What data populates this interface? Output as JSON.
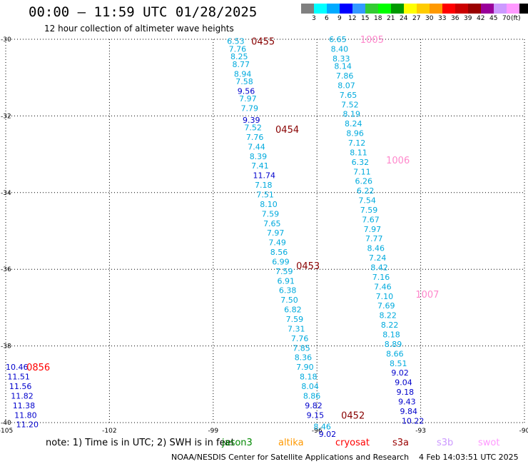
{
  "header": {
    "title": "00:00 – 11:59 UTC 01/28/2025",
    "subtitle": "12 hour collection of altimeter wave heights"
  },
  "colorbar": {
    "colors": [
      "#808080",
      "#00ffff",
      "#00aaff",
      "#0000ff",
      "#3399ff",
      "#33cc33",
      "#00ff00",
      "#009900",
      "#ffff00",
      "#ffcc00",
      "#ff9900",
      "#ff0000",
      "#cc0000",
      "#990000",
      "#990099",
      "#cc99ff",
      "#ff99ff",
      "#000000"
    ],
    "labels": [
      "3",
      "6",
      "9",
      "12",
      "15",
      "18",
      "21",
      "24",
      "27",
      "30",
      "33",
      "36",
      "39",
      "42",
      "45",
      "70",
      "(ft)"
    ]
  },
  "map": {
    "lon_range": [
      -105,
      -90
    ],
    "lat_range": [
      -40,
      -30
    ],
    "lon_ticks": [
      -105,
      -102,
      -99,
      -96,
      -93,
      -90
    ],
    "lat_ticks": [
      -30,
      -32,
      -34,
      -36,
      -38,
      -40
    ],
    "lon_tick_labels": [
      "-105",
      "-102",
      "-99",
      "-96",
      "-93",
      "-90"
    ],
    "lat_tick_labels": [
      "-30",
      "-32",
      "-34",
      "-36",
      "-38",
      "-40"
    ],
    "grid": true
  },
  "tracks": [
    {
      "time_label": "0455",
      "time_label_color": "#880000",
      "label_lon": -97.9,
      "label_lat": -30.05,
      "points": [
        {
          "lon": -98.6,
          "lat": -30.05,
          "v": "6.53"
        },
        {
          "lon": -98.55,
          "lat": -30.25,
          "v": "7.76"
        },
        {
          "lon": -98.5,
          "lat": -30.45,
          "v": "8.25"
        },
        {
          "lon": -98.45,
          "lat": -30.65,
          "v": "8.77"
        },
        {
          "lon": -98.4,
          "lat": -30.9,
          "v": "8.94"
        },
        {
          "lon": -98.35,
          "lat": -31.1,
          "v": "7.58"
        },
        {
          "lon": -98.3,
          "lat": -31.35,
          "v": "9.56"
        },
        {
          "lon": -98.25,
          "lat": -31.55,
          "v": "7.97"
        },
        {
          "lon": -98.2,
          "lat": -31.8,
          "v": "7.79"
        },
        {
          "lon": -98.15,
          "lat": -32.1,
          "v": "9.39"
        }
      ]
    },
    {
      "time_label": "0454",
      "time_label_color": "#880000",
      "label_lon": -97.2,
      "label_lat": -32.35,
      "points": [
        {
          "lon": -98.1,
          "lat": -32.3,
          "v": "7.52"
        },
        {
          "lon": -98.05,
          "lat": -32.55,
          "v": "7.76"
        },
        {
          "lon": -98.0,
          "lat": -32.8,
          "v": "7.44"
        },
        {
          "lon": -97.95,
          "lat": -33.05,
          "v": "8.39"
        },
        {
          "lon": -97.9,
          "lat": -33.3,
          "v": "7.41"
        },
        {
          "lon": -97.85,
          "lat": -33.55,
          "v": "11.74"
        },
        {
          "lon": -97.8,
          "lat": -33.8,
          "v": "7.18"
        },
        {
          "lon": -97.75,
          "lat": -34.05,
          "v": "7.51"
        },
        {
          "lon": -97.65,
          "lat": -34.3,
          "v": "8.10"
        },
        {
          "lon": -97.6,
          "lat": -34.55,
          "v": "7.59"
        },
        {
          "lon": -97.55,
          "lat": -34.8,
          "v": "7.65"
        },
        {
          "lon": -97.45,
          "lat": -35.05,
          "v": "7.97"
        },
        {
          "lon": -97.4,
          "lat": -35.3,
          "v": "7.49"
        },
        {
          "lon": -97.35,
          "lat": -35.55,
          "v": "8.56"
        },
        {
          "lon": -97.3,
          "lat": -35.8,
          "v": "6.99"
        },
        {
          "lon": -97.2,
          "lat": -36.05,
          "v": "7.59"
        }
      ]
    },
    {
      "time_label": "0453",
      "time_label_color": "#880000",
      "label_lon": -96.6,
      "label_lat": -35.9,
      "points": [
        {
          "lon": -97.15,
          "lat": -36.3,
          "v": "6.91"
        },
        {
          "lon": -97.1,
          "lat": -36.55,
          "v": "6.38"
        },
        {
          "lon": -97.05,
          "lat": -36.8,
          "v": "7.50"
        },
        {
          "lon": -96.95,
          "lat": -37.05,
          "v": "6.82"
        },
        {
          "lon": -96.9,
          "lat": -37.3,
          "v": "7.59"
        },
        {
          "lon": -96.85,
          "lat": -37.55,
          "v": "7.31"
        },
        {
          "lon": -96.75,
          "lat": -37.8,
          "v": "7.76"
        },
        {
          "lon": -96.7,
          "lat": -38.05,
          "v": "7.85"
        },
        {
          "lon": -96.65,
          "lat": -38.3,
          "v": "8.36"
        },
        {
          "lon": -96.6,
          "lat": -38.55,
          "v": "7.90"
        },
        {
          "lon": -96.5,
          "lat": -38.8,
          "v": "8.18"
        },
        {
          "lon": -96.45,
          "lat": -39.05,
          "v": "8.04"
        },
        {
          "lon": -96.4,
          "lat": -39.3,
          "v": "8.86"
        },
        {
          "lon": -96.35,
          "lat": -39.55,
          "v": "9.82"
        },
        {
          "lon": -96.3,
          "lat": -39.8,
          "v": "9.15"
        }
      ]
    },
    {
      "time_label": "0452",
      "time_label_color": "#880000",
      "label_lon": -95.3,
      "label_lat": -39.8,
      "points": [
        {
          "lon": -96.1,
          "lat": -40.1,
          "v": "8.46"
        },
        {
          "lon": -95.95,
          "lat": -40.3,
          "v": "9.02"
        }
      ]
    },
    {
      "time_label": "1005",
      "time_label_color": "#ff88cc",
      "label_lon": -94.75,
      "label_lat": -30.0,
      "points": [
        {
          "lon": -95.65,
          "lat": -30.0,
          "v": "6.65"
        },
        {
          "lon": -95.6,
          "lat": -30.25,
          "v": "8.40"
        },
        {
          "lon": -95.55,
          "lat": -30.5,
          "v": "8.33"
        },
        {
          "lon": -95.5,
          "lat": -30.7,
          "v": "8.14"
        },
        {
          "lon": -95.45,
          "lat": -30.95,
          "v": "7.86"
        },
        {
          "lon": -95.4,
          "lat": -31.2,
          "v": "8.07"
        },
        {
          "lon": -95.35,
          "lat": -31.45,
          "v": "7.65"
        },
        {
          "lon": -95.3,
          "lat": -31.7,
          "v": "7.52"
        },
        {
          "lon": -95.25,
          "lat": -31.95,
          "v": "8.19"
        },
        {
          "lon": -95.2,
          "lat": -32.2,
          "v": "8.24"
        },
        {
          "lon": -95.15,
          "lat": -32.45,
          "v": "8.96"
        },
        {
          "lon": -95.1,
          "lat": -32.7,
          "v": "7.12"
        },
        {
          "lon": -95.05,
          "lat": -32.95,
          "v": "8.11"
        },
        {
          "lon": -95.0,
          "lat": -33.2,
          "v": "6.32"
        }
      ]
    },
    {
      "time_label": "1006",
      "time_label_color": "#ff88cc",
      "label_lon": -94.0,
      "label_lat": -33.15,
      "points": [
        {
          "lon": -94.95,
          "lat": -33.45,
          "v": "7.11"
        },
        {
          "lon": -94.9,
          "lat": -33.7,
          "v": "6.26"
        },
        {
          "lon": -94.85,
          "lat": -33.95,
          "v": "6.22"
        },
        {
          "lon": -94.8,
          "lat": -34.2,
          "v": "7.54"
        },
        {
          "lon": -94.75,
          "lat": -34.45,
          "v": "7.59"
        },
        {
          "lon": -94.7,
          "lat": -34.7,
          "v": "7.67"
        },
        {
          "lon": -94.65,
          "lat": -34.95,
          "v": "7.97"
        },
        {
          "lon": -94.6,
          "lat": -35.2,
          "v": "7.77"
        },
        {
          "lon": -94.55,
          "lat": -35.45,
          "v": "8.46"
        },
        {
          "lon": -94.5,
          "lat": -35.7,
          "v": "7.24"
        },
        {
          "lon": -94.45,
          "lat": -35.95,
          "v": "8.42"
        },
        {
          "lon": -94.4,
          "lat": -36.2,
          "v": "7.16"
        },
        {
          "lon": -94.35,
          "lat": -36.45,
          "v": "7.46"
        },
        {
          "lon": -94.3,
          "lat": -36.7,
          "v": "7.10"
        }
      ]
    },
    {
      "time_label": "1007",
      "time_label_color": "#ff88cc",
      "label_lon": -93.15,
      "label_lat": -36.65,
      "points": [
        {
          "lon": -94.25,
          "lat": -36.95,
          "v": "7.69"
        },
        {
          "lon": -94.2,
          "lat": -37.2,
          "v": "8.22"
        },
        {
          "lon": -94.15,
          "lat": -37.45,
          "v": "8.22"
        },
        {
          "lon": -94.1,
          "lat": -37.7,
          "v": "8.18"
        },
        {
          "lon": -94.05,
          "lat": -37.95,
          "v": "8.89"
        },
        {
          "lon": -94.0,
          "lat": -38.2,
          "v": "8.66"
        },
        {
          "lon": -93.9,
          "lat": -38.45,
          "v": "8.51"
        },
        {
          "lon": -93.85,
          "lat": -38.7,
          "v": "9.02"
        },
        {
          "lon": -93.75,
          "lat": -38.95,
          "v": "9.04"
        },
        {
          "lon": -93.7,
          "lat": -39.2,
          "v": "9.18"
        },
        {
          "lon": -93.65,
          "lat": -39.45,
          "v": "9.43"
        },
        {
          "lon": -93.6,
          "lat": -39.7,
          "v": "9.84"
        },
        {
          "lon": -93.55,
          "lat": -39.95,
          "v": "10.22"
        }
      ]
    },
    {
      "time_label": "0856",
      "time_label_color": "#ff0000",
      "label_lon": -104.4,
      "label_lat": -38.55,
      "points": [
        {
          "lon": -105.0,
          "lat": -38.55,
          "v": "10.46"
        },
        {
          "lon": -104.95,
          "lat": -38.8,
          "v": "11.51"
        },
        {
          "lon": -104.9,
          "lat": -39.05,
          "v": "11.56"
        },
        {
          "lon": -104.85,
          "lat": -39.3,
          "v": "11.82"
        },
        {
          "lon": -104.8,
          "lat": -39.55,
          "v": "11.38"
        },
        {
          "lon": -104.75,
          "lat": -39.8,
          "v": "11.80"
        },
        {
          "lon": -104.7,
          "lat": -40.05,
          "v": "11.20"
        }
      ]
    }
  ],
  "footer": {
    "note": "note: 1) Time is in UTC; 2) SWH is in feet",
    "legend": [
      {
        "name": "jason3",
        "color": "#008800"
      },
      {
        "name": "altika",
        "color": "#ff9900"
      },
      {
        "name": "cryosat",
        "color": "#ff0000"
      },
      {
        "name": "s3a",
        "color": "#990000"
      },
      {
        "name": "s3b",
        "color": "#cc99ff"
      },
      {
        "name": "swot",
        "color": "#ff99ff"
      }
    ],
    "credit": "NOAA/NESDIS Center for Satellite Applications and Research",
    "stamp": "4 Feb 14:03:51 UTC 2025"
  }
}
